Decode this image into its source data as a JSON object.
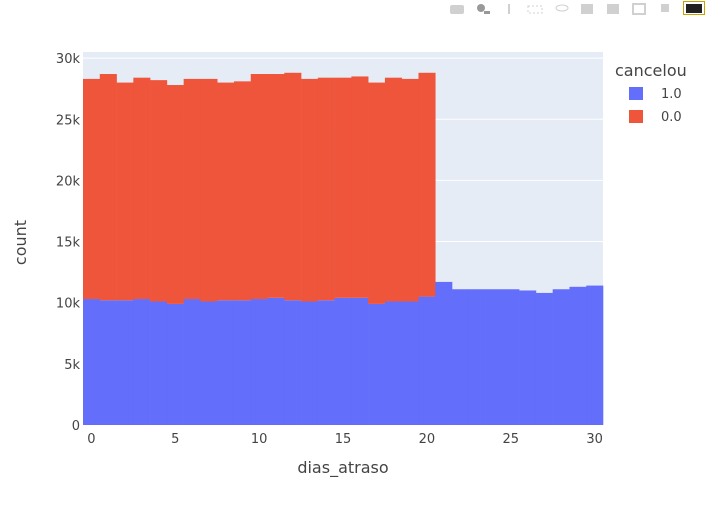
{
  "modebar": {
    "icons": [
      "camera-icon",
      "zoom-icon",
      "pan-icon",
      "box-select-icon",
      "lasso-icon",
      "zoom-in-icon",
      "zoom-out-icon",
      "autoscale-icon",
      "reset-axes-icon",
      "plotly-logo-icon"
    ]
  },
  "chart_data": {
    "type": "bar",
    "barmode": "stack",
    "xlabel": "dias_atraso",
    "ylabel": "count",
    "xlim": [
      -0.5,
      30.5
    ],
    "ylim": [
      0,
      30500
    ],
    "x_ticks": [
      0,
      5,
      10,
      15,
      20,
      25,
      30
    ],
    "y_ticks": [
      0,
      5000,
      10000,
      15000,
      20000,
      25000,
      30000
    ],
    "y_tick_labels": [
      "0",
      "5k",
      "10k",
      "15k",
      "20k",
      "25k",
      "30k"
    ],
    "grid": true,
    "legend_title": "cancelou",
    "legend_position": "top-right",
    "x": [
      0,
      1,
      2,
      3,
      4,
      5,
      6,
      7,
      8,
      9,
      10,
      11,
      12,
      13,
      14,
      15,
      16,
      17,
      18,
      19,
      20,
      21,
      22,
      23,
      24,
      25,
      26,
      27,
      28,
      29,
      30
    ],
    "series": [
      {
        "name": "1.0",
        "color": "#636efa",
        "values": [
          10300,
          10200,
          10200,
          10300,
          10100,
          9900,
          10300,
          10100,
          10200,
          10200,
          10300,
          10400,
          10200,
          10100,
          10200,
          10400,
          10400,
          9900,
          10100,
          10100,
          10500,
          11700,
          11100,
          11100,
          11100,
          11100,
          11000,
          10800,
          11100,
          11300,
          11400
        ]
      },
      {
        "name": "0.0",
        "color": "#ef553b",
        "values": [
          18000,
          18500,
          17800,
          18100,
          18100,
          17900,
          18000,
          18200,
          17800,
          17900,
          18400,
          18300,
          18600,
          18200,
          18200,
          18000,
          18100,
          18100,
          18300,
          18200,
          18300,
          0,
          0,
          0,
          0,
          0,
          0,
          0,
          0,
          0,
          0
        ]
      }
    ]
  }
}
